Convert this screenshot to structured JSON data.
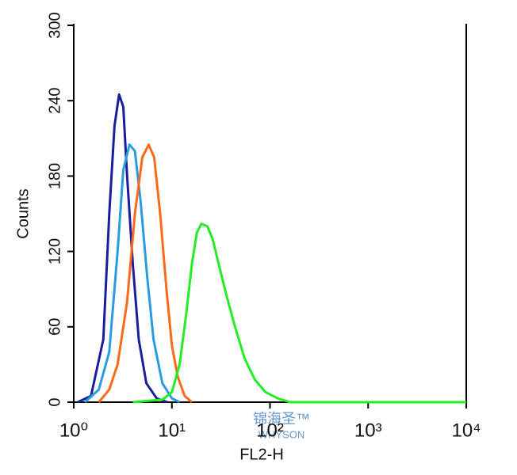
{
  "chart_data": {
    "type": "line",
    "x_label": "FL2-H",
    "y_label": "Counts",
    "xscale": "log",
    "xlim": [
      1,
      10000
    ],
    "xticks": [
      {
        "value": 1,
        "label": "10⁰"
      },
      {
        "value": 10,
        "label": "10¹"
      },
      {
        "value": 100,
        "label": "10²"
      },
      {
        "value": 1000,
        "label": "10³"
      },
      {
        "value": 10000,
        "label": "10⁴"
      }
    ],
    "ylim": [
      0,
      300
    ],
    "yticks": [
      0,
      60,
      120,
      180,
      240,
      300
    ],
    "watermark": [
      "锦海圣™",
      "WHYSON"
    ],
    "series": [
      {
        "color": "#1c1c9e",
        "x": [
          1.1,
          1.5,
          2.0,
          2.3,
          2.6,
          2.9,
          3.2,
          3.5,
          4.0,
          4.6,
          5.5,
          7,
          9
        ],
        "values": [
          0,
          5,
          50,
          150,
          220,
          245,
          235,
          180,
          110,
          50,
          15,
          3,
          0
        ]
      },
      {
        "color": "#2a9be0",
        "x": [
          1.3,
          1.8,
          2.3,
          2.8,
          3.2,
          3.7,
          4.2,
          4.8,
          5.6,
          6.5,
          8,
          10,
          12
        ],
        "values": [
          0,
          10,
          40,
          120,
          185,
          205,
          200,
          160,
          100,
          50,
          15,
          3,
          0
        ]
      },
      {
        "color": "#ff6a1a",
        "x": [
          1.8,
          2.3,
          2.8,
          3.5,
          4.2,
          5.0,
          5.8,
          6.6,
          7.6,
          8.8,
          10,
          11.5,
          13.5,
          16
        ],
        "values": [
          0,
          10,
          30,
          80,
          150,
          195,
          205,
          195,
          150,
          90,
          45,
          20,
          5,
          0
        ]
      },
      {
        "color": "#22ee22",
        "x": [
          4,
          8,
          10,
          12,
          14,
          16,
          18,
          20,
          23,
          26,
          30,
          36,
          44,
          55,
          70,
          90,
          120,
          160,
          10000
        ],
        "values": [
          0,
          2,
          8,
          30,
          70,
          110,
          135,
          142,
          140,
          130,
          110,
          85,
          60,
          35,
          18,
          8,
          3,
          0,
          0
        ]
      }
    ]
  }
}
